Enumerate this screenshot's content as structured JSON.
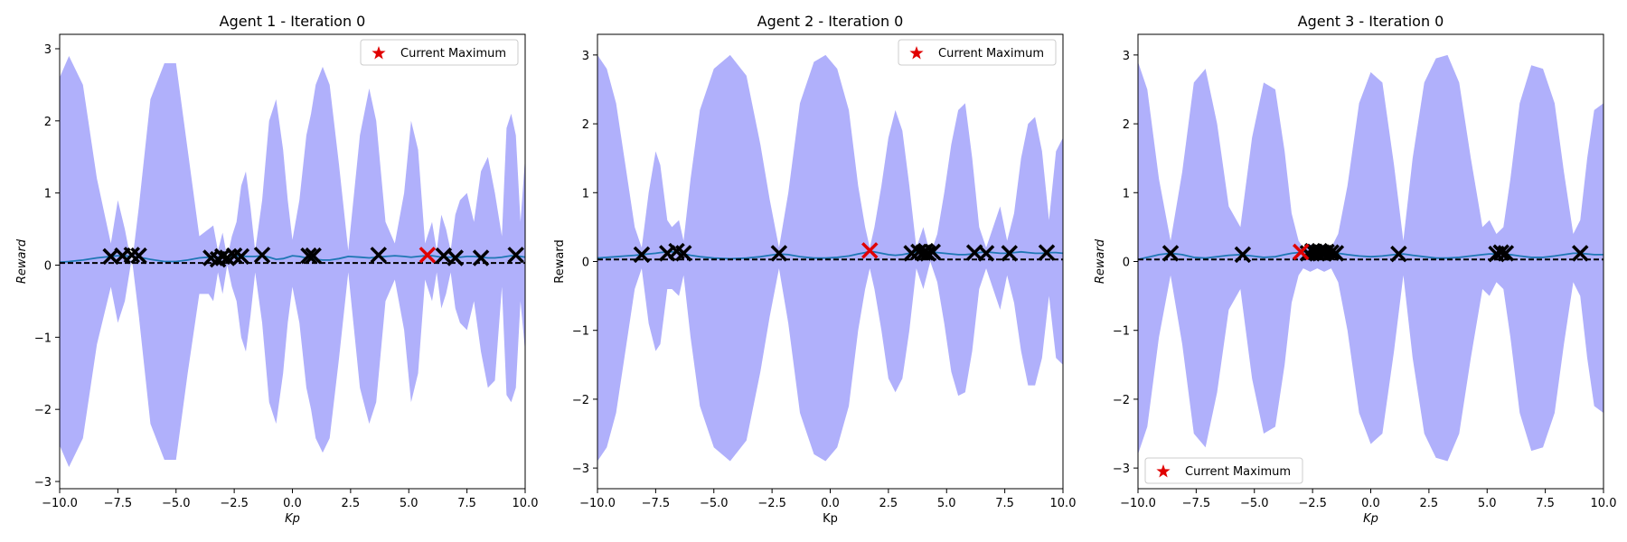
{
  "chart_data": [
    {
      "type": "line",
      "title": "Agent 1 - Iteration 0",
      "xlabel": "Kp",
      "ylabel": "Reward",
      "label_style": "italic",
      "xlim": [
        -10,
        10
      ],
      "ylim": [
        -3.1,
        3.2
      ],
      "xticks": [
        -10.0,
        -7.5,
        -5.0,
        -2.5,
        0.0,
        2.5,
        5.0,
        7.5,
        10.0
      ],
      "yticks": [
        -3,
        -2,
        -1,
        0,
        1,
        2,
        3
      ],
      "baseline": 0.03,
      "legend": {
        "label": "Current Maximum",
        "placement": "top-right"
      },
      "colors": {
        "band": "#b0b0fb",
        "mean": "#1f77b4",
        "sample": "#000000",
        "maximum": "#e00000"
      },
      "samples_x": [
        -7.8,
        -7.3,
        -6.9,
        -6.6,
        -3.5,
        -3.2,
        -3.0,
        -2.8,
        -2.5,
        -2.2,
        -1.3,
        0.7,
        0.9,
        3.7,
        6.5,
        7.0,
        8.1,
        9.6
      ],
      "samples_y": [
        0.12,
        0.13,
        0.14,
        0.13,
        0.1,
        0.08,
        0.12,
        0.1,
        0.13,
        0.12,
        0.14,
        0.13,
        0.13,
        0.14,
        0.13,
        0.1,
        0.1,
        0.14
      ],
      "maximum": {
        "x": 5.8,
        "y": 0.14
      },
      "curve_x": [
        -10,
        -9.6,
        -9.0,
        -8.4,
        -7.8,
        -7.5,
        -7.2,
        -6.9,
        -6.6,
        -6.1,
        -5.5,
        -5.0,
        -4.5,
        -4.0,
        -3.6,
        -3.4,
        -3.2,
        -3.0,
        -2.8,
        -2.6,
        -2.4,
        -2.2,
        -2.0,
        -1.8,
        -1.6,
        -1.3,
        -1.0,
        -0.7,
        -0.4,
        -0.2,
        0.0,
        0.3,
        0.6,
        0.8,
        1.0,
        1.3,
        1.6,
        2.0,
        2.4,
        2.9,
        3.3,
        3.6,
        4.0,
        4.4,
        4.8,
        5.1,
        5.4,
        5.7,
        6.0,
        6.2,
        6.4,
        6.6,
        6.8,
        7.0,
        7.2,
        7.5,
        7.8,
        8.1,
        8.4,
        8.7,
        9.0,
        9.2,
        9.4,
        9.6,
        9.8,
        10.0
      ],
      "curve_upper": [
        2.6,
        2.9,
        2.5,
        1.2,
        0.3,
        0.9,
        0.5,
        0.0,
        0.8,
        2.3,
        2.8,
        2.8,
        1.6,
        0.4,
        0.5,
        0.55,
        0.2,
        0.45,
        0.1,
        0.4,
        0.6,
        1.1,
        1.3,
        0.8,
        0.2,
        0.9,
        2.0,
        2.3,
        1.6,
        0.9,
        0.35,
        0.9,
        1.8,
        2.1,
        2.5,
        2.75,
        2.5,
        1.4,
        0.2,
        1.8,
        2.45,
        2.0,
        0.6,
        0.3,
        1.0,
        2.0,
        1.6,
        0.3,
        0.6,
        0.2,
        0.7,
        0.5,
        0.2,
        0.7,
        0.9,
        1.0,
        0.6,
        1.3,
        1.5,
        1.0,
        0.4,
        1.9,
        2.1,
        1.8,
        0.6,
        1.5
      ],
      "curve_lower": [
        -2.5,
        -2.8,
        -2.4,
        -1.1,
        -0.3,
        -0.8,
        -0.5,
        0.1,
        -0.7,
        -2.2,
        -2.7,
        -2.7,
        -1.5,
        -0.4,
        -0.4,
        -0.5,
        -0.1,
        -0.4,
        0.0,
        -0.3,
        -0.5,
        -1.0,
        -1.2,
        -0.7,
        -0.1,
        -0.8,
        -1.9,
        -2.2,
        -1.5,
        -0.8,
        -0.3,
        -0.8,
        -1.7,
        -2.0,
        -2.4,
        -2.6,
        -2.4,
        -1.3,
        -0.1,
        -1.7,
        -2.2,
        -1.9,
        -0.5,
        -0.2,
        -0.9,
        -1.9,
        -1.5,
        -0.2,
        -0.5,
        -0.1,
        -0.6,
        -0.4,
        -0.1,
        -0.6,
        -0.8,
        -0.9,
        -0.5,
        -1.2,
        -1.7,
        -1.6,
        -0.3,
        -1.8,
        -1.9,
        -1.7,
        -0.5,
        -1.2
      ],
      "mean_y": [
        0.04,
        0.05,
        0.07,
        0.1,
        0.12,
        0.13,
        0.13,
        0.12,
        0.11,
        0.08,
        0.05,
        0.05,
        0.07,
        0.1,
        0.11,
        0.11,
        0.11,
        0.1,
        0.11,
        0.12,
        0.13,
        0.13,
        0.12,
        0.12,
        0.12,
        0.13,
        0.11,
        0.08,
        0.09,
        0.11,
        0.13,
        0.12,
        0.1,
        0.09,
        0.08,
        0.07,
        0.07,
        0.09,
        0.12,
        0.11,
        0.1,
        0.11,
        0.12,
        0.13,
        0.12,
        0.11,
        0.12,
        0.13,
        0.13,
        0.12,
        0.11,
        0.11,
        0.11,
        0.11,
        0.11,
        0.12,
        0.12,
        0.11,
        0.1,
        0.1,
        0.11,
        0.12,
        0.13,
        0.13,
        0.12,
        0.11
      ]
    },
    {
      "type": "line",
      "title": "Agent 2 - Iteration 0",
      "xlabel": "Kp",
      "ylabel": "Reward",
      "label_style": "normal",
      "xlim": [
        -10,
        10
      ],
      "ylim": [
        -3.3,
        3.3
      ],
      "xticks": [
        -10.0,
        -7.5,
        -5.0,
        -2.5,
        0.0,
        2.5,
        5.0,
        7.5,
        10.0
      ],
      "yticks": [
        -3,
        -2,
        -1,
        0,
        1,
        2,
        3
      ],
      "baseline": 0.03,
      "legend": {
        "label": "Current Maximum",
        "placement": "top-right"
      },
      "colors": {
        "band": "#b0b0fb",
        "mean": "#1f77b4",
        "sample": "#000000",
        "maximum": "#e00000"
      },
      "samples_x": [
        -8.1,
        -7.0,
        -6.6,
        -6.3,
        -2.2,
        3.5,
        3.8,
        4.0,
        4.1,
        4.2,
        4.4,
        6.2,
        6.7,
        7.7,
        9.3
      ],
      "samples_y": [
        0.1,
        0.12,
        0.15,
        0.12,
        0.12,
        0.12,
        0.14,
        0.13,
        0.15,
        0.12,
        0.14,
        0.13,
        0.12,
        0.12,
        0.13
      ],
      "maximum": {
        "x": 1.7,
        "y": 0.16
      },
      "curve_x": [
        -10,
        -9.6,
        -9.2,
        -8.8,
        -8.4,
        -8.1,
        -7.8,
        -7.5,
        -7.3,
        -7.0,
        -6.8,
        -6.5,
        -6.3,
        -6.0,
        -5.6,
        -5.0,
        -4.3,
        -3.6,
        -3.0,
        -2.6,
        -2.2,
        -1.8,
        -1.3,
        -0.7,
        -0.2,
        0.3,
        0.8,
        1.2,
        1.5,
        1.7,
        1.9,
        2.2,
        2.5,
        2.8,
        3.1,
        3.4,
        3.7,
        4.0,
        4.3,
        4.6,
        4.9,
        5.2,
        5.5,
        5.8,
        6.1,
        6.4,
        6.7,
        7.0,
        7.3,
        7.6,
        7.9,
        8.2,
        8.5,
        8.8,
        9.1,
        9.4,
        9.7,
        10.0
      ],
      "curve_upper": [
        3.0,
        2.8,
        2.3,
        1.4,
        0.5,
        0.2,
        1.0,
        1.6,
        1.4,
        0.6,
        0.5,
        0.6,
        0.3,
        1.2,
        2.2,
        2.8,
        3.0,
        2.7,
        1.7,
        0.9,
        0.2,
        1.0,
        2.3,
        2.9,
        3.0,
        2.8,
        2.2,
        1.1,
        0.5,
        0.2,
        0.5,
        1.1,
        1.8,
        2.2,
        1.9,
        1.1,
        0.2,
        0.5,
        0.1,
        0.4,
        1.0,
        1.7,
        2.2,
        2.3,
        1.5,
        0.5,
        0.2,
        0.5,
        0.8,
        0.3,
        0.7,
        1.5,
        2.0,
        2.1,
        1.6,
        0.6,
        1.6,
        1.8
      ],
      "curve_lower": [
        -2.9,
        -2.7,
        -2.2,
        -1.3,
        -0.4,
        -0.1,
        -0.9,
        -1.3,
        -1.2,
        -0.4,
        -0.4,
        -0.5,
        -0.2,
        -1.1,
        -2.1,
        -2.7,
        -2.9,
        -2.6,
        -1.6,
        -0.8,
        -0.1,
        -0.9,
        -2.2,
        -2.8,
        -2.9,
        -2.7,
        -2.1,
        -1.0,
        -0.4,
        -0.1,
        -0.4,
        -1.0,
        -1.7,
        -1.9,
        -1.7,
        -1.0,
        -0.1,
        -0.4,
        0.0,
        -0.3,
        -0.9,
        -1.6,
        -1.95,
        -1.9,
        -1.3,
        -0.4,
        -0.1,
        -0.4,
        -0.7,
        -0.2,
        -0.6,
        -1.3,
        -1.8,
        -1.8,
        -1.4,
        -0.5,
        -1.4,
        -1.5
      ],
      "mean_y": [
        0.05,
        0.06,
        0.07,
        0.08,
        0.09,
        0.1,
        0.11,
        0.12,
        0.13,
        0.14,
        0.14,
        0.13,
        0.11,
        0.09,
        0.07,
        0.05,
        0.04,
        0.05,
        0.07,
        0.09,
        0.11,
        0.1,
        0.07,
        0.05,
        0.05,
        0.06,
        0.08,
        0.11,
        0.13,
        0.15,
        0.14,
        0.12,
        0.1,
        0.09,
        0.1,
        0.12,
        0.14,
        0.15,
        0.14,
        0.13,
        0.12,
        0.11,
        0.1,
        0.1,
        0.11,
        0.13,
        0.14,
        0.13,
        0.12,
        0.12,
        0.13,
        0.14,
        0.13,
        0.12,
        0.12,
        0.13,
        0.13,
        0.12
      ]
    },
    {
      "type": "line",
      "title": "Agent 3 - Iteration 0",
      "xlabel": "Kp",
      "ylabel": "Reward",
      "label_style": "italic",
      "xlim": [
        -10,
        10
      ],
      "ylim": [
        -3.3,
        3.3
      ],
      "xticks": [
        -10.0,
        -7.5,
        -5.0,
        -2.5,
        0.0,
        2.5,
        5.0,
        7.5,
        10.0
      ],
      "yticks": [
        -3,
        -2,
        -1,
        0,
        1,
        2,
        3
      ],
      "baseline": 0.03,
      "legend": {
        "label": "Current Maximum",
        "placement": "bottom-left"
      },
      "colors": {
        "band": "#b0b0fb",
        "mean": "#1f77b4",
        "sample": "#000000",
        "maximum": "#e00000"
      },
      "samples_x": [
        -8.6,
        -5.5,
        -2.7,
        -2.5,
        -2.4,
        -2.3,
        -2.2,
        -2.1,
        -2.0,
        -1.9,
        -1.7,
        -1.5,
        1.2,
        5.4,
        5.6,
        5.8,
        9.0
      ],
      "samples_y": [
        0.12,
        0.1,
        0.12,
        0.15,
        0.14,
        0.12,
        0.15,
        0.13,
        0.12,
        0.14,
        0.13,
        0.12,
        0.11,
        0.11,
        0.13,
        0.12,
        0.12
      ],
      "maximum": {
        "x": -3.0,
        "y": 0.14
      },
      "curve_x": [
        -10,
        -9.6,
        -9.1,
        -8.6,
        -8.1,
        -7.6,
        -7.1,
        -6.6,
        -6.1,
        -5.6,
        -5.1,
        -4.6,
        -4.1,
        -3.7,
        -3.4,
        -3.1,
        -2.9,
        -2.6,
        -2.3,
        -2.0,
        -1.7,
        -1.4,
        -1.0,
        -0.5,
        0.0,
        0.5,
        1.0,
        1.4,
        1.8,
        2.3,
        2.8,
        3.3,
        3.8,
        4.3,
        4.8,
        5.1,
        5.4,
        5.7,
        6.0,
        6.4,
        6.9,
        7.4,
        7.9,
        8.3,
        8.7,
        9.0,
        9.3,
        9.6,
        10.0
      ],
      "curve_upper": [
        2.9,
        2.5,
        1.2,
        0.3,
        1.3,
        2.6,
        2.8,
        2.0,
        0.8,
        0.5,
        1.8,
        2.6,
        2.5,
        1.6,
        0.7,
        0.3,
        0.2,
        0.25,
        0.2,
        0.25,
        0.2,
        0.4,
        1.1,
        2.3,
        2.75,
        2.6,
        1.4,
        0.3,
        1.5,
        2.6,
        2.95,
        3.0,
        2.6,
        1.5,
        0.5,
        0.6,
        0.4,
        0.5,
        1.2,
        2.3,
        2.85,
        2.8,
        2.3,
        1.3,
        0.4,
        0.6,
        1.5,
        2.2,
        2.3
      ],
      "curve_lower": [
        -2.8,
        -2.4,
        -1.1,
        -0.2,
        -1.2,
        -2.5,
        -2.7,
        -1.9,
        -0.7,
        -0.4,
        -1.7,
        -2.5,
        -2.4,
        -1.5,
        -0.6,
        -0.2,
        -0.1,
        -0.15,
        -0.1,
        -0.15,
        -0.1,
        -0.3,
        -1.0,
        -2.2,
        -2.65,
        -2.5,
        -1.3,
        -0.2,
        -1.4,
        -2.5,
        -2.85,
        -2.9,
        -2.5,
        -1.4,
        -0.4,
        -0.5,
        -0.3,
        -0.4,
        -1.1,
        -2.2,
        -2.75,
        -2.7,
        -2.2,
        -1.2,
        -0.3,
        -0.5,
        -1.4,
        -2.1,
        -2.2
      ],
      "mean_y": [
        0.03,
        0.06,
        0.1,
        0.12,
        0.1,
        0.06,
        0.05,
        0.07,
        0.09,
        0.1,
        0.08,
        0.06,
        0.07,
        0.1,
        0.12,
        0.13,
        0.14,
        0.14,
        0.14,
        0.14,
        0.13,
        0.12,
        0.1,
        0.08,
        0.07,
        0.08,
        0.1,
        0.11,
        0.09,
        0.07,
        0.05,
        0.05,
        0.06,
        0.08,
        0.1,
        0.11,
        0.11,
        0.11,
        0.1,
        0.08,
        0.06,
        0.06,
        0.08,
        0.1,
        0.12,
        0.12,
        0.11,
        0.1,
        0.1
      ]
    }
  ]
}
